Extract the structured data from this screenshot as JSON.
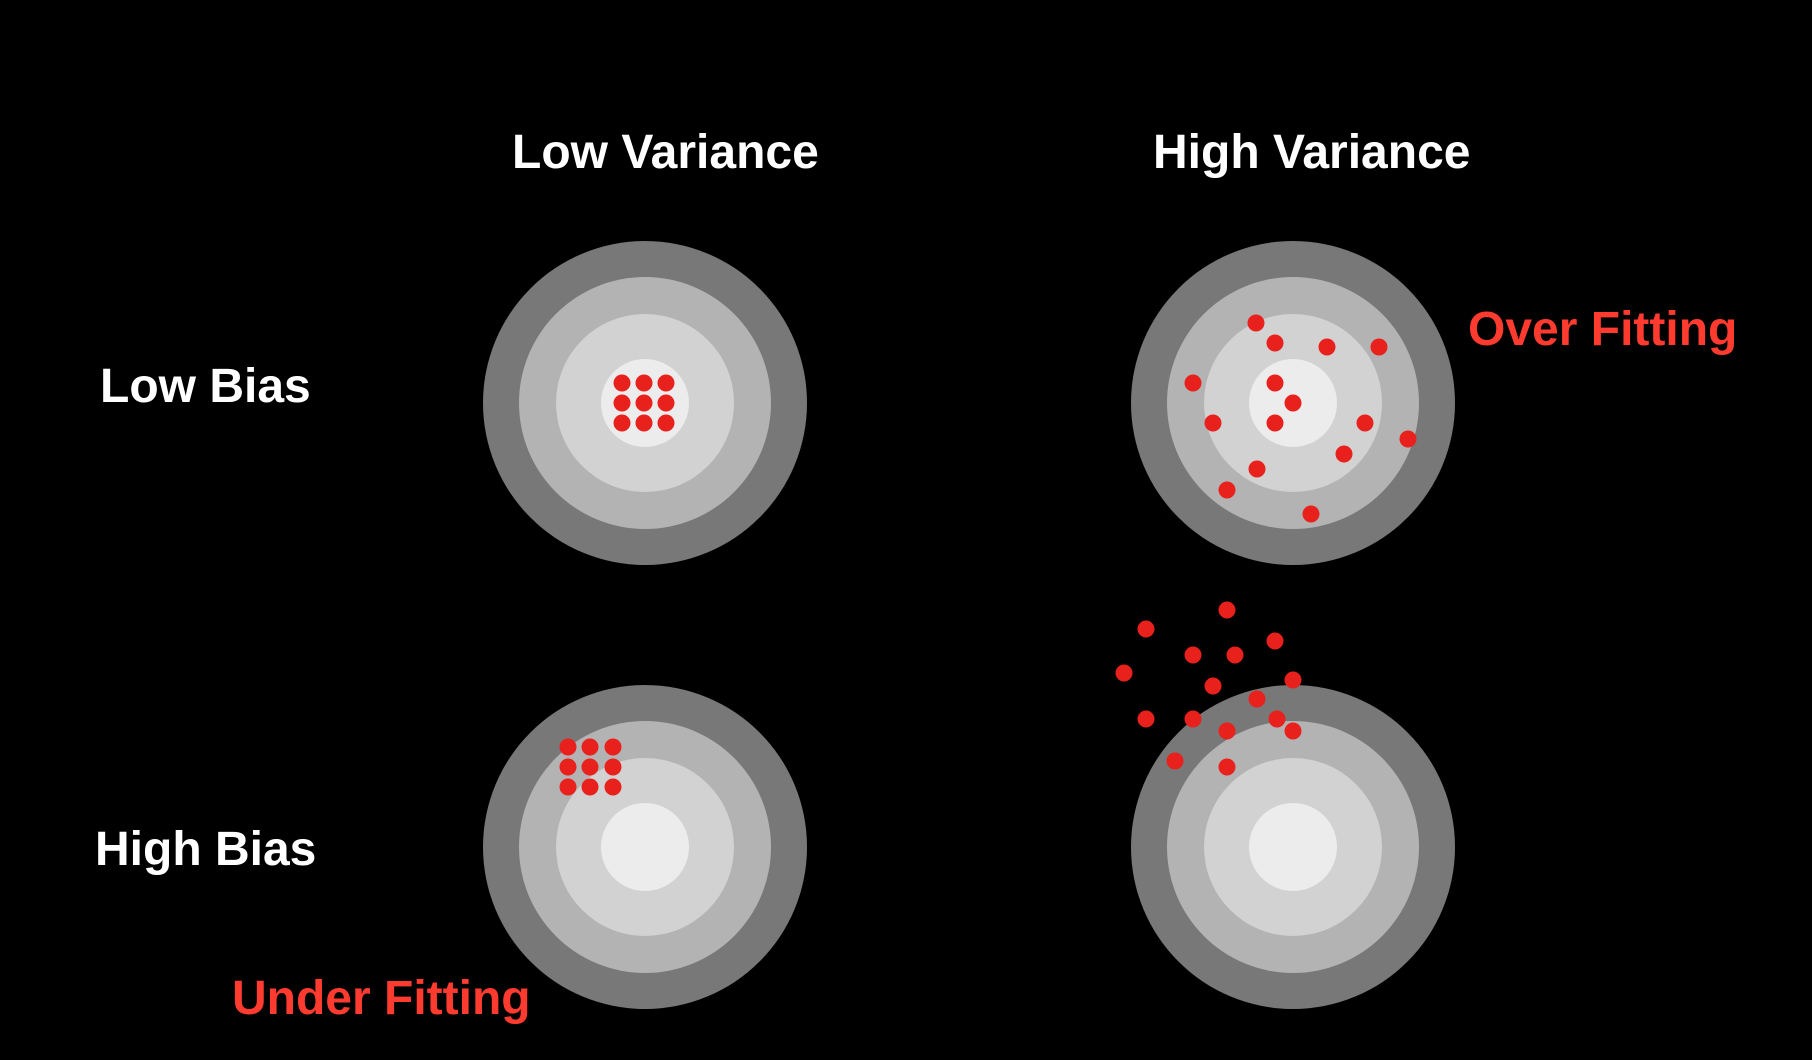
{
  "columns": {
    "low_variance": "Low Variance",
    "high_variance": "High Variance"
  },
  "rows": {
    "low_bias": "Low Bias",
    "high_bias": "High Bias"
  },
  "annotations": {
    "over_fitting": "Over Fitting",
    "under_fitting": "Under Fitting"
  },
  "colors": {
    "background": "#000000",
    "text": "#ffffff",
    "accent": "#ff3b30",
    "shot": "#e8211d",
    "ring_outer": "#787878",
    "ring_2": "#b3b3b3",
    "ring_3": "#d2d2d2",
    "bullseye": "#ececec"
  },
  "targets": [
    {
      "id": "low-bias-low-variance",
      "row": "low_bias",
      "column": "low_variance"
    },
    {
      "id": "low-bias-high-variance",
      "row": "low_bias",
      "column": "high_variance"
    },
    {
      "id": "high-bias-low-variance",
      "row": "high_bias",
      "column": "low_variance"
    },
    {
      "id": "high-bias-high-variance",
      "row": "high_bias",
      "column": "high_variance"
    }
  ]
}
